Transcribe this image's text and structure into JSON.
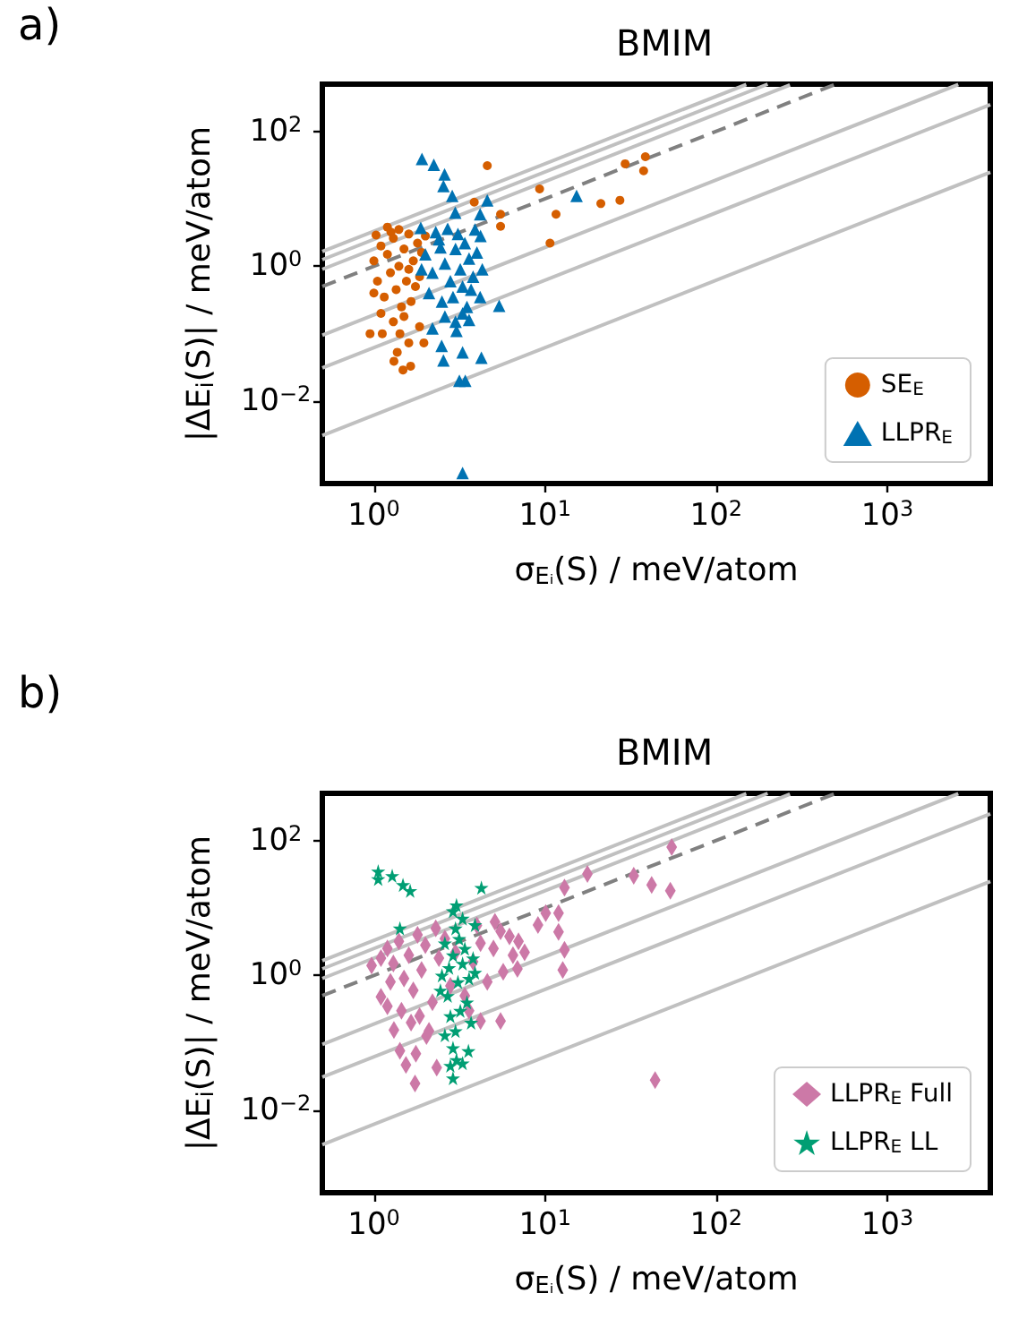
{
  "chart_data": [
    {
      "type": "scatter",
      "title": "BMIM",
      "xlabel": "σ$_{Eᵢ}$(S) / meV/atom",
      "ylabel": "|ΔE$_{i}$(S)| / meV/atom",
      "annotations": [
        "a)"
      ],
      "log": "xy",
      "grid": false,
      "legend": "bottom right",
      "xlim": [
        0.5,
        4000
      ],
      "ylim": [
        0.0006,
        500
      ],
      "xticks": [
        {
          "value": 1,
          "label": "10$^{0}$"
        },
        {
          "value": 10,
          "label": "10$^{1}$"
        },
        {
          "value": 100,
          "label": "10$^{2}$"
        },
        {
          "value": 1000,
          "label": "10$^{3}$"
        }
      ],
      "yticks": [
        {
          "value": 0.01,
          "label": "10$^{−2}$"
        },
        {
          "value": 1,
          "label": "10$^{0}$"
        },
        {
          "value": 100,
          "label": "10$^{2}$"
        }
      ],
      "series": [
        {
          "type": "line",
          "color": "#c0c0c0",
          "line_style": "solid",
          "marker": "none",
          "x": [
            0.5,
            150
          ],
          "values": [
            1.65,
            495
          ]
        },
        {
          "type": "line",
          "color": "#c0c0c0",
          "line_style": "solid",
          "marker": "none",
          "x": [
            0.5,
            200
          ],
          "values": [
            1.25,
            500
          ]
        },
        {
          "type": "line",
          "color": "#c0c0c0",
          "line_style": "solid",
          "marker": "none",
          "x": [
            0.5,
            270
          ],
          "values": [
            0.9,
            486
          ]
        },
        {
          "type": "line",
          "color": "#c0c0c0",
          "line_style": "solid",
          "marker": "none",
          "x": [
            0.5,
            2600
          ],
          "values": [
            0.095,
            494
          ]
        },
        {
          "type": "line",
          "color": "#c0c0c0",
          "line_style": "solid",
          "marker": "none",
          "x": [
            0.5,
            4000
          ],
          "values": [
            0.031,
            248
          ]
        },
        {
          "type": "line",
          "color": "#c0c0c0",
          "line_style": "solid",
          "marker": "none",
          "x": [
            0.5,
            4000
          ],
          "values": [
            0.0031,
            24.8
          ]
        },
        {
          "type": "line",
          "color": "#808080",
          "line_style": "dashed",
          "marker": "none",
          "x": [
            0.5,
            500
          ],
          "values": [
            0.5,
            500
          ]
        },
        {
          "name": "SE$_{E}$",
          "color": "#d55e00",
          "marker": "circle",
          "x": [
            4.6,
            3.86,
            5.5,
            5.5,
            9.3,
            11.6,
            10.7,
            21.2,
            27.4,
            29.4,
            37.7,
            38.6,
            0.95,
            1.12,
            1.31,
            1.48,
            1.64,
            1.37,
            1.6,
            1.96,
            1.85,
            1.42,
            1.03,
            1.26,
            1.0,
            1.05,
            1.1,
            1.15,
            1.2,
            1.25,
            1.3,
            1.35,
            1.4,
            1.45,
            1.5,
            1.55,
            1.6,
            1.65,
            1.7,
            1.75,
            1.8,
            1.1,
            1.3,
            1.5,
            1.2,
            1.4,
            1.0,
            1.6,
            1.85,
            1.9,
            2.0
          ],
          "values": [
            31,
            8.9,
            5.9,
            3.9,
            14,
            5.9,
            2.2,
            8.5,
            9.5,
            33,
            26,
            42,
            0.1,
            0.1,
            0.039,
            0.029,
            0.033,
            0.053,
            0.073,
            0.073,
            0.127,
            0.1,
            2.9,
            3.2,
            1.2,
            0.6,
            2.0,
            0.35,
            1.5,
            0.8,
            2.6,
            0.45,
            1.0,
            0.25,
            1.8,
            0.6,
            3.0,
            0.3,
            1.2,
            0.5,
            2.2,
            0.2,
            0.15,
            0.18,
            3.8,
            3.5,
            0.4,
            0.9,
            0.7,
            1.6,
            2.8
          ]
        },
        {
          "name": "LLPR$_{E}$",
          "color": "#0072b2",
          "marker": "triangle",
          "x": [
            1.91,
            2.24,
            2.59,
            2.55,
            2.87,
            4.6,
            15.3,
            2.99,
            4.18,
            1.88,
            5.4,
            4.18,
            3.3,
            2.2,
            3.04,
            2.49,
            3.3,
            4.25,
            2.55,
            3.16,
            3.42,
            3.3,
            2.0,
            2.2,
            2.4,
            2.6,
            2.8,
            3.0,
            3.2,
            3.4,
            3.6,
            3.8,
            4.0,
            2.1,
            2.5,
            2.9,
            3.3,
            3.7,
            4.2,
            2.3,
            2.7,
            3.1,
            3.5,
            1.9,
            4.3,
            2.45,
            3.9,
            3.0,
            2.6,
            3.6
          ],
          "values": [
            39,
            32,
            23,
            15.5,
            11,
            9.5,
            11,
            6.2,
            5.9,
            3.7,
            0.26,
            0.35,
            0.2,
            0.12,
            0.11,
            0.066,
            0.053,
            0.044,
            0.04,
            0.02,
            0.02,
            0.00086,
            1.5,
            0.8,
            2.5,
            1.1,
            0.6,
            1.8,
            0.9,
            2.2,
            1.3,
            0.7,
            1.6,
            0.4,
            0.3,
            0.35,
            0.5,
            0.45,
            2.8,
            3.2,
            3.6,
            3.0,
            0.25,
            0.9,
            0.9,
            1.9,
            3.5,
            0.15,
            0.18,
            0.16
          ]
        }
      ]
    },
    {
      "type": "scatter",
      "title": "BMIM",
      "xlabel": "σ$_{Eᵢ}$(S) / meV/atom",
      "ylabel": "|ΔE$_{i}$(S)| / meV/atom",
      "annotations": [
        "b)"
      ],
      "log": "xy",
      "grid": false,
      "legend": "bottom right",
      "xlim": [
        0.5,
        4000
      ],
      "ylim": [
        0.0006,
        500
      ],
      "xticks": [
        {
          "value": 1,
          "label": "10$^{0}$"
        },
        {
          "value": 10,
          "label": "10$^{1}$"
        },
        {
          "value": 100,
          "label": "10$^{2}$"
        },
        {
          "value": 1000,
          "label": "10$^{3}$"
        }
      ],
      "yticks": [
        {
          "value": 0.01,
          "label": "10$^{−2}$"
        },
        {
          "value": 1,
          "label": "10$^{0}$"
        },
        {
          "value": 100,
          "label": "10$^{2}$"
        }
      ],
      "series": [
        {
          "type": "line",
          "color": "#c0c0c0",
          "line_style": "solid",
          "marker": "none",
          "x": [
            0.5,
            150
          ],
          "values": [
            1.65,
            495
          ]
        },
        {
          "type": "line",
          "color": "#c0c0c0",
          "line_style": "solid",
          "marker": "none",
          "x": [
            0.5,
            200
          ],
          "values": [
            1.25,
            500
          ]
        },
        {
          "type": "line",
          "color": "#c0c0c0",
          "line_style": "solid",
          "marker": "none",
          "x": [
            0.5,
            270
          ],
          "values": [
            0.9,
            486
          ]
        },
        {
          "type": "line",
          "color": "#c0c0c0",
          "line_style": "solid",
          "marker": "none",
          "x": [
            0.5,
            2600
          ],
          "values": [
            0.095,
            494
          ]
        },
        {
          "type": "line",
          "color": "#c0c0c0",
          "line_style": "solid",
          "marker": "none",
          "x": [
            0.5,
            4000
          ],
          "values": [
            0.031,
            248
          ]
        },
        {
          "type": "line",
          "color": "#c0c0c0",
          "line_style": "solid",
          "marker": "none",
          "x": [
            0.5,
            4000
          ],
          "values": [
            0.0031,
            24.8
          ]
        },
        {
          "type": "line",
          "color": "#808080",
          "line_style": "dashed",
          "marker": "none",
          "x": [
            0.5,
            500
          ],
          "values": [
            0.5,
            500
          ]
        },
        {
          "name": "LLPR$_{E}$ Full",
          "color": "#cc79a7",
          "marker": "diamond",
          "x": [
            55,
            33,
            42,
            54,
            17.7,
            13,
            12,
            10.1,
            9.1,
            12,
            13,
            12.7,
            7.6,
            6.9,
            5.7,
            5.5,
            5.1,
            44,
            1.74,
            1.54,
            1.42,
            1.76,
            2.33,
            1.1,
            0.97,
            1.2,
            1.31,
            2.03,
            4.2,
            1.2,
            1.3,
            1.4,
            1.5,
            1.6,
            1.7,
            1.8,
            1.9,
            2.0,
            2.2,
            2.4,
            2.6,
            2.8,
            3.0,
            3.4,
            3.8,
            4.2,
            4.6,
            5.0,
            5.5,
            6.2,
            7.0,
            1.25,
            1.45,
            1.65,
            1.85,
            2.1,
            1.1,
            3.6,
            2.3,
            4.0,
            6.5
          ],
          "values": [
            80,
            30,
            22,
            18,
            32,
            20,
            8.4,
            8.4,
            5.6,
            4.4,
            2.4,
            1.2,
            2.2,
            1.25,
            1.13,
            0.21,
            6.2,
            0.028,
            0.025,
            0.047,
            0.076,
            0.069,
            0.043,
            0.48,
            1.4,
            0.35,
            0.155,
            0.126,
            0.21,
            2.5,
            1.5,
            3.2,
            0.9,
            2.0,
            0.6,
            4.0,
            1.2,
            2.8,
            0.4,
            1.8,
            3.5,
            0.7,
            2.2,
            0.5,
            1.6,
            3.0,
            0.8,
            2.5,
            4.5,
            3.8,
            3.2,
            0.8,
            0.3,
            0.2,
            0.25,
            0.15,
            1.8,
            0.3,
            5.0,
            5.5,
            2.0
          ]
        },
        {
          "name": "LLPR$_{E}$ LL",
          "color": "#009e73",
          "marker": "star",
          "x": [
            1.06,
            1.06,
            1.28,
            1.48,
            1.63,
            4.25,
            3.04,
            3.9,
            1.42,
            2.9,
            3.57,
            3.04,
            2.8,
            2.9,
            3.3,
            2.5,
            2.7,
            2.9,
            3.1,
            3.3,
            3.5,
            2.6,
            2.8,
            3.0,
            3.2,
            3.4,
            3.6,
            3.8,
            2.45,
            3.0,
            2.75,
            3.15,
            3.7,
            3.3,
            2.9,
            3.9,
            2.6
          ],
          "values": [
            35,
            27,
            30,
            22,
            18,
            20,
            11,
            5.6,
            5.0,
            0.084,
            0.076,
            0.056,
            0.046,
            0.03,
            0.05,
            1.0,
            0.5,
            2.0,
            0.8,
            1.5,
            0.4,
            3.0,
            0.25,
            5.0,
            0.3,
            2.5,
            0.9,
            1.8,
            0.6,
            0.15,
            1.3,
            3.5,
            0.2,
            7.0,
            9.0,
            1.1,
            0.13
          ]
        }
      ]
    }
  ]
}
